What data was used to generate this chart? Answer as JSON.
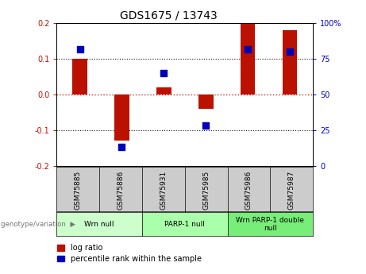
{
  "title": "GDS1675 / 13743",
  "samples": [
    "GSM75885",
    "GSM75886",
    "GSM75931",
    "GSM75985",
    "GSM75986",
    "GSM75987"
  ],
  "log_ratios": [
    0.1,
    -0.13,
    0.02,
    -0.04,
    0.2,
    0.18
  ],
  "percentile_ranks": [
    82,
    13,
    65,
    28,
    82,
    80
  ],
  "ylim_left": [
    -0.2,
    0.2
  ],
  "ylim_right": [
    0,
    100
  ],
  "yticks_left": [
    -0.2,
    -0.1,
    0.0,
    0.1,
    0.2
  ],
  "yticks_right": [
    0,
    25,
    50,
    75,
    100
  ],
  "ytick_labels_right": [
    "0",
    "25",
    "50",
    "75",
    "100%"
  ],
  "bar_color": "#bb1100",
  "dot_color": "#0000bb",
  "zero_line_color": "#dd2222",
  "grid_color": "#111111",
  "groups": [
    {
      "label": "Wrn null",
      "start": 0,
      "end": 1,
      "color": "#ccffcc"
    },
    {
      "label": "PARP-1 null",
      "start": 2,
      "end": 3,
      "color": "#aaffaa"
    },
    {
      "label": "Wrn PARP-1 double\nnull",
      "start": 4,
      "end": 5,
      "color": "#77ee77"
    }
  ],
  "bar_width": 0.35,
  "dot_size": 28,
  "background_label": "#cccccc",
  "label_fontsize": 6.5,
  "tick_fontsize": 7,
  "title_fontsize": 10,
  "legend_fontsize": 7
}
